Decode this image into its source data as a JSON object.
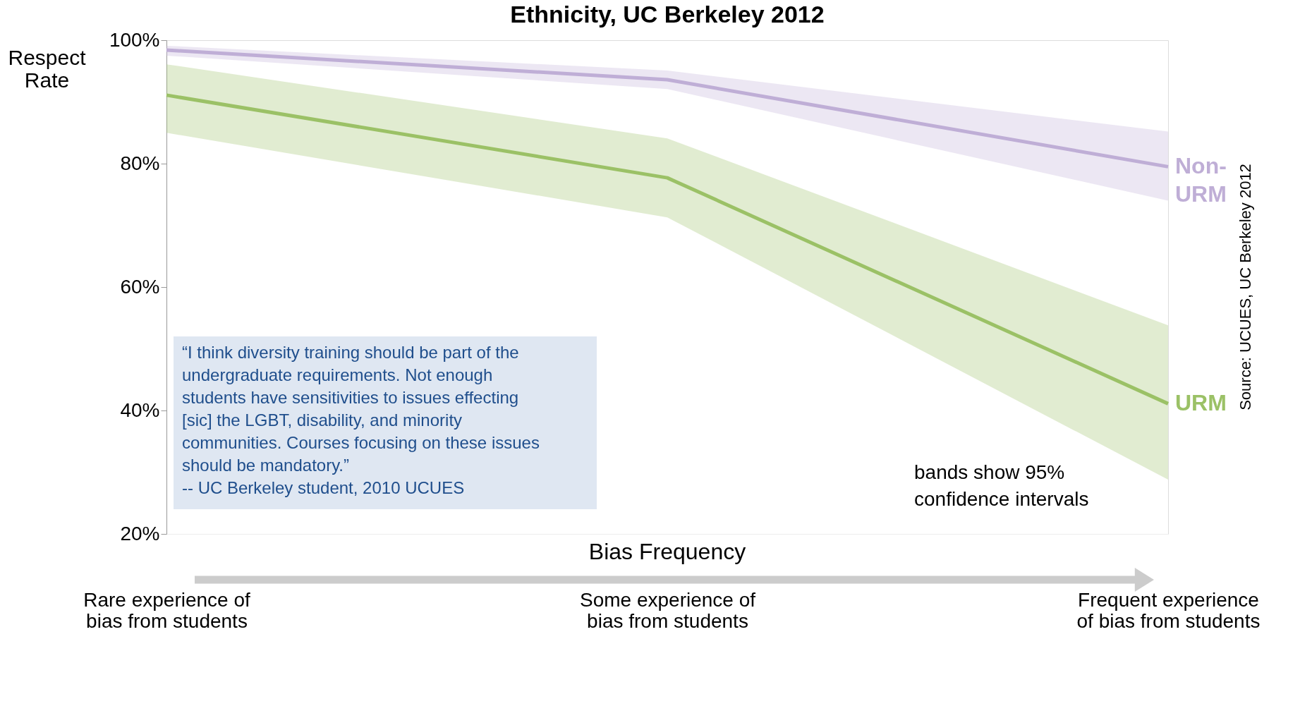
{
  "chart_data": {
    "type": "line",
    "title": "Ethnicity, UC Berkeley 2012",
    "categories": [
      "Rare experience of\nbias from students",
      "Some experience of\nbias from students",
      "Frequent experience\nof bias from students"
    ],
    "xlabel": "Bias Frequency",
    "ylabel": "Respect\nRate",
    "ylim": [
      20,
      100
    ],
    "yticks": [
      {
        "value": 20,
        "label": "20%"
      },
      {
        "value": 40,
        "label": "40%"
      },
      {
        "value": 60,
        "label": "60%"
      },
      {
        "value": 80,
        "label": "80%"
      },
      {
        "value": 100,
        "label": "100%"
      }
    ],
    "grid": false,
    "series": [
      {
        "name": "Non-\nURM",
        "color": "#bfaed6",
        "values": [
          98.4,
          93.6,
          79.5
        ],
        "lower": [
          97.5,
          92.1,
          74.0
        ],
        "upper": [
          99.1,
          95.1,
          85.2
        ]
      },
      {
        "name": "URM",
        "color": "#9bc166",
        "values": [
          91.1,
          77.7,
          41.1
        ],
        "lower": [
          85.0,
          71.3,
          28.8
        ],
        "upper": [
          96.1,
          84.1,
          53.8
        ]
      }
    ],
    "annotations": [
      "“I think diversity training should be part of the\nundergraduate requirements.  Not enough\nstudents have sensitivities to issues effecting\n[sic] the LGBT, disability, and minority\ncommunities.  Courses focusing on these issues\nshould be mandatory.”\n                  -- UC Berkeley student, 2010 UCUES",
      "bands show 95%\nconfidence intervals",
      "Source: UCUES, UC Berkeley 2012"
    ]
  }
}
